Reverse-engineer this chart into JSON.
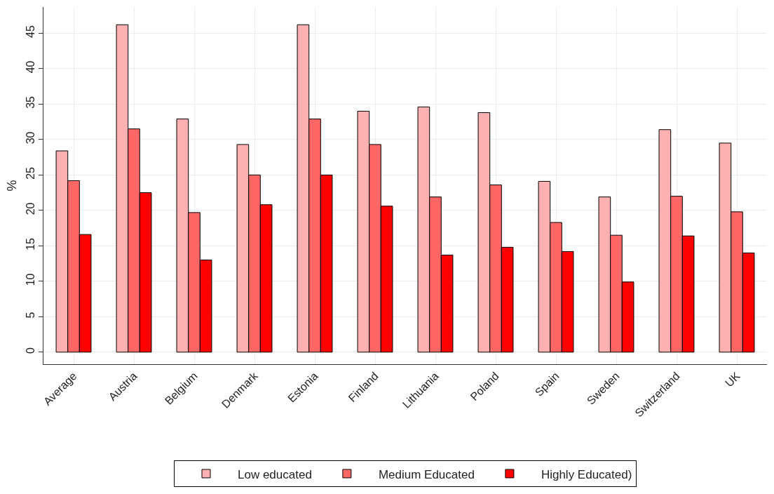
{
  "chart_data": {
    "type": "bar",
    "ylabel": "%",
    "categories": [
      "Average",
      "Austria",
      "Belgium",
      "Denmark",
      "Estonia",
      "Finland",
      "Lithuania",
      "Poland",
      "Spain",
      "Sweden",
      "Switzerland",
      "UK"
    ],
    "series": [
      {
        "name": "Low educated",
        "color": "#ffb0b0",
        "values": [
          28.4,
          46.2,
          32.9,
          29.3,
          46.2,
          34.0,
          34.6,
          33.8,
          24.1,
          21.9,
          31.4,
          29.5
        ]
      },
      {
        "name": "Medium Educated",
        "color": "#ff6666",
        "values": [
          24.2,
          31.5,
          19.7,
          25.0,
          32.9,
          29.3,
          21.9,
          23.6,
          18.3,
          16.5,
          22.0,
          19.8
        ]
      },
      {
        "name": "Highly Educated)",
        "color": "#ff0000",
        "values": [
          16.6,
          22.5,
          13.0,
          20.8,
          25.0,
          20.6,
          13.7,
          14.8,
          14.2,
          9.9,
          16.4,
          14.0
        ]
      }
    ],
    "ylim": [
      -1.7,
      48.7
    ],
    "yticks": [
      0,
      5,
      10,
      15,
      20,
      25,
      30,
      35,
      40,
      45
    ],
    "grid": true,
    "legend": "bottom"
  }
}
